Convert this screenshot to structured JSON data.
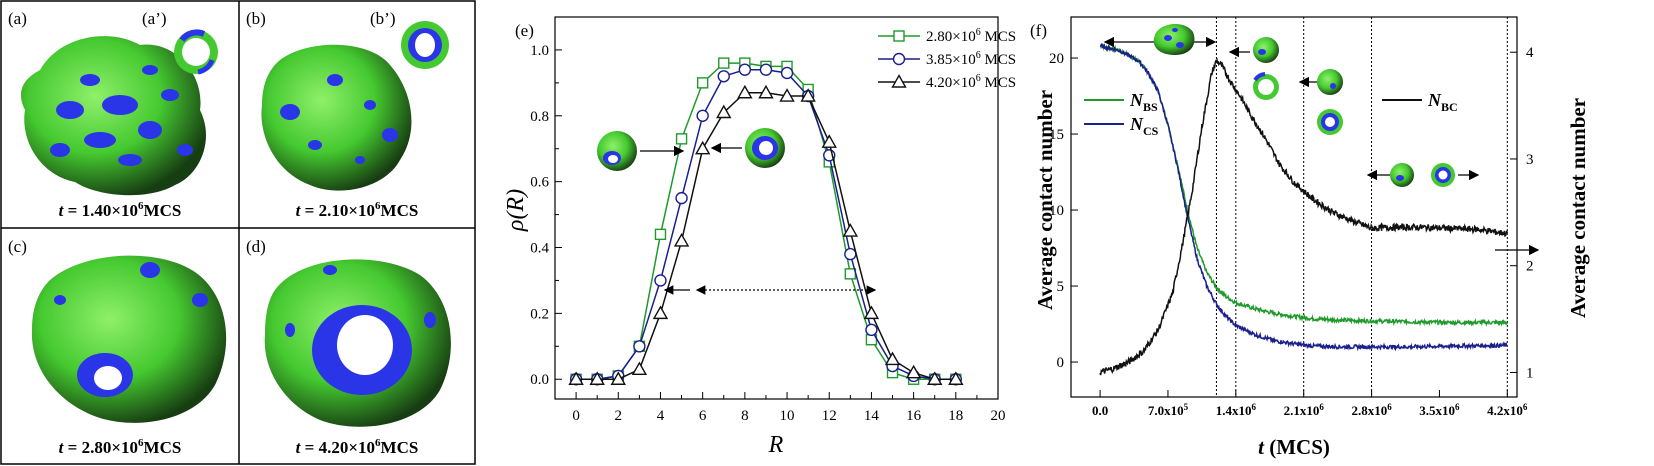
{
  "colors": {
    "green": "#1f9a2b",
    "blue": "#1a1f8c",
    "black": "#111111",
    "blob_green": "#45c930",
    "blob_blue": "#2a35e8",
    "blob_dark": "#1b3a16"
  },
  "panels": {
    "a": {
      "label": "(a)",
      "inset": "(a’)",
      "t": "t",
      "eq": " = 1.40×10",
      "exp": "6",
      "unit": "MCS"
    },
    "b": {
      "label": "(b)",
      "inset": "(b’)",
      "t": "t",
      "eq": " = 2.10×10",
      "exp": "6",
      "unit": "MCS"
    },
    "c": {
      "label": "(c)",
      "t": "t",
      "eq": " = 2.80×10",
      "exp": "6",
      "unit": "MCS"
    },
    "d": {
      "label": "(d)",
      "t": "t",
      "eq": " = 4.20×10",
      "exp": "6",
      "unit": "MCS"
    },
    "e": {
      "label": "(e)"
    },
    "f": {
      "label": "(f)"
    }
  },
  "chart_data": [
    {
      "type": "line",
      "panel": "(e)",
      "xlabel": "R",
      "ylabel": "ρ(R)",
      "xlim": [
        -1,
        20
      ],
      "ylim": [
        -0.06,
        1.1
      ],
      "xticks": [
        "0",
        "2",
        "4",
        "6",
        "8",
        "10",
        "12",
        "14",
        "16",
        "18",
        "20"
      ],
      "yticks": [
        "0.0",
        "0.2",
        "0.4",
        "0.6",
        "0.8",
        "1.0"
      ],
      "x": [
        0,
        1,
        2,
        3,
        4,
        5,
        6,
        7,
        8,
        9,
        10,
        11,
        12,
        13,
        14,
        15,
        16,
        17,
        18
      ],
      "series": [
        {
          "name": "2.80×10⁶ MCS",
          "name_main": "2.80×10",
          "name_exp": "6",
          "name_unit": "MCS",
          "marker": "square",
          "color": "#1f9a2b",
          "values": [
            0,
            0,
            0.01,
            0.1,
            0.44,
            0.73,
            0.9,
            0.96,
            0.96,
            0.95,
            0.95,
            0.88,
            0.66,
            0.32,
            0.12,
            0.02,
            0.0,
            0.0,
            0.0
          ]
        },
        {
          "name": "3.85×10⁶ MCS",
          "name_main": "3.85×10",
          "name_exp": "6",
          "name_unit": "MCS",
          "marker": "circle",
          "color": "#1a1f8c",
          "values": [
            0,
            0,
            0.01,
            0.1,
            0.3,
            0.55,
            0.8,
            0.92,
            0.94,
            0.94,
            0.93,
            0.86,
            0.68,
            0.38,
            0.15,
            0.04,
            0.01,
            0.0,
            0.0
          ]
        },
        {
          "name": "4.20×10⁶ MCS",
          "name_main": "4.20×10",
          "name_exp": "6",
          "name_unit": "MCS",
          "marker": "triangle",
          "color": "#111111",
          "values": [
            0,
            0,
            0,
            0.03,
            0.2,
            0.42,
            0.7,
            0.81,
            0.87,
            0.87,
            0.86,
            0.86,
            0.72,
            0.45,
            0.2,
            0.06,
            0.02,
            0.0,
            0.0
          ]
        }
      ]
    },
    {
      "type": "line",
      "panel": "(f)",
      "xlabel": "t (MCS)",
      "ylabel": "Average contact number",
      "ylabel_right": "Average contact number",
      "xlim": [
        -300000,
        4300000
      ],
      "ylim": [
        -2.3,
        22.7
      ],
      "ylim_right": [
        0.77,
        4.33
      ],
      "xticks": [
        {
          "v": 0,
          "m": "0.0",
          "e": ""
        },
        {
          "v": 700000,
          "m": "7.0x10",
          "e": "5"
        },
        {
          "v": 1400000,
          "m": "1.4x10",
          "e": "6"
        },
        {
          "v": 2100000,
          "m": "2.1x10",
          "e": "6"
        },
        {
          "v": 2800000,
          "m": "2.8x10",
          "e": "6"
        },
        {
          "v": 3500000,
          "m": "3.5x10",
          "e": "6"
        },
        {
          "v": 4200000,
          "m": "4.2x10",
          "e": "6"
        }
      ],
      "yticks": [
        "0",
        "5",
        "10",
        "15",
        "20"
      ],
      "yticks_right": [
        "1",
        "2",
        "3",
        "4"
      ],
      "vlines": [
        1200000,
        1400000,
        2100000,
        2800000,
        4200000
      ],
      "series": [
        {
          "name": "N_BS",
          "sym": "N",
          "sub": "BS",
          "color": "#1f9a2b",
          "axis": "left",
          "x": [
            0,
            200000,
            400000,
            500000,
            600000,
            700000,
            800000,
            900000,
            1000000,
            1100000,
            1200000,
            1300000,
            1400000,
            1600000,
            1800000,
            2000000,
            2200000,
            2500000,
            2800000,
            3200000,
            3600000,
            4200000
          ],
          "values": [
            20.8,
            20.5,
            19.8,
            19.0,
            17.8,
            15.6,
            13.0,
            10.0,
            7.5,
            5.9,
            4.9,
            4.3,
            3.9,
            3.5,
            3.2,
            3.0,
            2.85,
            2.75,
            2.7,
            2.65,
            2.6,
            2.6
          ]
        },
        {
          "name": "N_CS",
          "sym": "N",
          "sub": "CS",
          "color": "#1a1f8c",
          "axis": "left",
          "x": [
            0,
            200000,
            400000,
            500000,
            600000,
            700000,
            800000,
            900000,
            1000000,
            1100000,
            1200000,
            1300000,
            1400000,
            1600000,
            1800000,
            2000000,
            2200000,
            2500000,
            2800000,
            3200000,
            3600000,
            4200000
          ],
          "values": [
            20.8,
            20.5,
            19.8,
            19.0,
            17.8,
            15.6,
            12.8,
            9.6,
            6.8,
            5.0,
            3.8,
            3.0,
            2.4,
            1.8,
            1.4,
            1.2,
            1.05,
            1.0,
            1.0,
            1.0,
            1.05,
            1.1
          ]
        },
        {
          "name": "N_BC",
          "sym": "N",
          "sub": "BC",
          "color": "#111111",
          "axis": "right",
          "x": [
            0,
            150000,
            300000,
            450000,
            600000,
            750000,
            850000,
            950000,
            1050000,
            1150000,
            1200000,
            1250000,
            1350000,
            1450000,
            1550000,
            1700000,
            1850000,
            2000000,
            2200000,
            2400000,
            2600000,
            2800000,
            3000000,
            3300000,
            3600000,
            3900000,
            4200000
          ],
          "values": [
            1.0,
            1.04,
            1.1,
            1.2,
            1.4,
            1.75,
            2.2,
            2.7,
            3.3,
            3.8,
            3.92,
            3.88,
            3.72,
            3.58,
            3.42,
            3.2,
            2.95,
            2.78,
            2.62,
            2.5,
            2.42,
            2.35,
            2.36,
            2.36,
            2.35,
            2.34,
            2.3
          ]
        }
      ]
    }
  ]
}
